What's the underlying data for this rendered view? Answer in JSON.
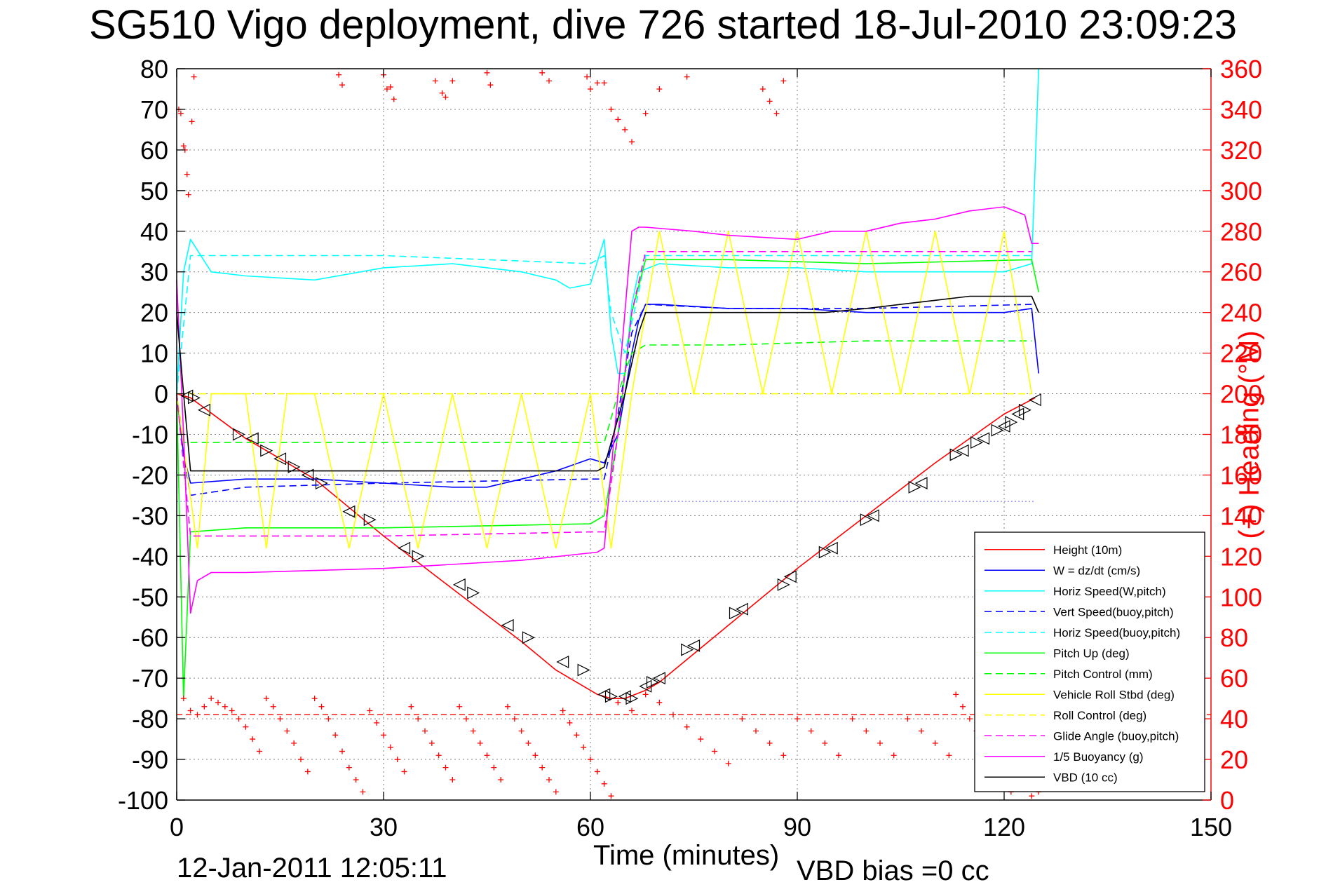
{
  "chart_data": {
    "type": "line",
    "title": "SG510 Vigo deployment, dive 726 started 18-Jul-2010 23:09:23",
    "xlabel": "Time (minutes)",
    "ylabel": "",
    "y2label": "(+) Heading (°M)",
    "xlim": [
      0,
      150
    ],
    "ylim": [
      -100,
      80
    ],
    "y2lim": [
      0,
      360
    ],
    "xticks": [
      "0",
      "30",
      "60",
      "90",
      "120",
      "150"
    ],
    "yticks": [
      "80",
      "70",
      "60",
      "50",
      "40",
      "30",
      "20",
      "10",
      "0",
      "-10",
      "-20",
      "-30",
      "-40",
      "-50",
      "-60",
      "-70",
      "-80",
      "-90",
      "-100"
    ],
    "y2ticks": [
      "360",
      "340",
      "320",
      "300",
      "280",
      "260",
      "240",
      "220",
      "200",
      "180",
      "160",
      "140",
      "120",
      "100",
      "80",
      "60",
      "40",
      "20",
      "0"
    ],
    "grid": true,
    "legend_position": "bottom-right",
    "footer_timestamp": "12-Jan-2011 12:05:11",
    "footer_note": "VBD bias =0 cc",
    "series": [
      {
        "name": "Height (10m)",
        "color": "#ff0000",
        "dash": "solid",
        "x": [
          0,
          2,
          10,
          20,
          30,
          40,
          50,
          55,
          61,
          63,
          65,
          68,
          70,
          80,
          90,
          100,
          110,
          120,
          124.5
        ],
        "y": [
          0,
          -1,
          -11,
          -21,
          -35,
          -48,
          -61,
          -68,
          -74,
          -75,
          -75,
          -73,
          -71,
          -57,
          -43,
          -30,
          -17,
          -5,
          -1
        ]
      },
      {
        "name": "W = dz/dt (cm/s)",
        "color": "#0000ff",
        "dash": "solid",
        "x": [
          0,
          1,
          2,
          10,
          20,
          30,
          40,
          45,
          50,
          55,
          60,
          62,
          64,
          65,
          66,
          67,
          68,
          70,
          80,
          90,
          100,
          110,
          120,
          124,
          125
        ],
        "y": [
          0,
          -15,
          -22,
          -21,
          -21,
          -22,
          -23,
          -23,
          -21,
          -19,
          -16,
          -17,
          -10,
          0,
          10,
          18,
          22,
          22,
          21,
          21,
          20,
          20,
          20,
          21,
          5
        ]
      },
      {
        "name": "Horiz Speed(W,pitch)",
        "color": "#00ffff",
        "dash": "solid",
        "x": [
          0,
          1,
          2,
          5,
          10,
          20,
          30,
          40,
          50,
          55,
          57,
          60,
          62,
          63,
          64,
          65,
          66,
          67,
          70,
          80,
          90,
          100,
          110,
          120,
          124,
          125
        ],
        "y": [
          0,
          30,
          38,
          30,
          29,
          28,
          31,
          32,
          30,
          28,
          26,
          27,
          38,
          15,
          5,
          5,
          22,
          30,
          32,
          31,
          31,
          30,
          30,
          30,
          32,
          80
        ]
      },
      {
        "name": "Vert Speed(buoy,pitch)",
        "color": "#0000ff",
        "dash": "dashed",
        "x": [
          0,
          1,
          2,
          10,
          30,
          60,
          62,
          64,
          66,
          68,
          80,
          100,
          124
        ],
        "y": [
          0,
          -15,
          -25,
          -23,
          -22,
          -21,
          -21,
          -5,
          15,
          22,
          21,
          21,
          22
        ]
      },
      {
        "name": "Horiz Speed(buoy,pitch)",
        "color": "#00ffff",
        "dash": "dashed",
        "x": [
          0,
          2,
          10,
          30,
          60,
          62,
          63,
          65,
          67,
          68,
          80,
          100,
          124
        ],
        "y": [
          0,
          34,
          34,
          34,
          32,
          34,
          20,
          10,
          25,
          34,
          34,
          34,
          34
        ]
      },
      {
        "name": "Pitch Up (deg)",
        "color": "#00ff00",
        "dash": "solid",
        "x": [
          0,
          1,
          2,
          10,
          30,
          60,
          62,
          64,
          66,
          68,
          80,
          100,
          124,
          125
        ],
        "y": [
          0,
          -75,
          -34,
          -33,
          -33,
          -32,
          -30,
          -10,
          20,
          33,
          33,
          32,
          33,
          25
        ]
      },
      {
        "name": "Pitch Control (mm)",
        "color": "#00ff00",
        "dash": "dashed",
        "x": [
          0,
          1,
          60,
          62,
          64,
          66,
          68,
          80,
          100,
          124
        ],
        "y": [
          0,
          -12,
          -12,
          -12,
          0,
          10,
          12,
          12,
          13,
          13
        ]
      },
      {
        "name": "Vehicle Roll Stbd (deg)",
        "color": "#ffff00",
        "dash": "solid",
        "x": [
          0,
          3,
          5,
          10,
          13,
          16,
          20,
          25,
          30,
          35,
          40,
          45,
          50,
          55,
          60,
          63,
          66,
          70,
          75,
          80,
          85,
          90,
          95,
          100,
          105,
          110,
          115,
          120,
          124
        ],
        "y": [
          0,
          -38,
          0,
          0,
          -38,
          0,
          0,
          -38,
          0,
          -38,
          0,
          -38,
          0,
          -38,
          0,
          -38,
          0,
          40,
          0,
          40,
          0,
          40,
          0,
          40,
          0,
          40,
          0,
          40,
          0
        ]
      },
      {
        "name": "Roll Control (deg)",
        "color": "#ffff00",
        "dash": "dashed",
        "x": [
          0,
          60,
          66,
          120,
          124
        ],
        "y": [
          0,
          0,
          0,
          0,
          0
        ]
      },
      {
        "name": "Glide Angle (buoy,pitch)",
        "color": "#ff00ff",
        "dash": "dashed",
        "x": [
          0,
          2,
          10,
          30,
          60,
          62,
          64,
          66,
          68,
          80,
          100,
          124
        ],
        "y": [
          0,
          -35,
          -35,
          -35,
          -34,
          -34,
          -10,
          20,
          35,
          35,
          35,
          35
        ]
      },
      {
        "name": "1/5 Buoyancy (g)",
        "color": "#ff00ff",
        "dash": "solid",
        "x": [
          0,
          1,
          2,
          3,
          5,
          10,
          30,
          50,
          61,
          62,
          64,
          66,
          67,
          68,
          75,
          80,
          90,
          95,
          100,
          105,
          110,
          115,
          120,
          123,
          124,
          125
        ],
        "y": [
          28,
          -10,
          -54,
          -46,
          -44,
          -44,
          -43,
          -41,
          -39,
          -38,
          0,
          40,
          41,
          41,
          40,
          39,
          38,
          40,
          40,
          42,
          43,
          45,
          46,
          44,
          37,
          37
        ]
      },
      {
        "name": "VBD (10 cc)",
        "color": "#000000",
        "dash": "solid",
        "x": [
          0,
          1,
          2,
          60,
          61,
          62,
          65,
          67,
          68,
          70,
          80,
          94,
          100,
          105,
          110,
          115,
          120,
          124,
          125
        ],
        "y": [
          20,
          0,
          -19,
          -19,
          -19,
          -18,
          0,
          15,
          20,
          20,
          20,
          20,
          21,
          22,
          23,
          24,
          24,
          24,
          20
        ]
      }
    ],
    "reference_lines": [
      {
        "color": "#ff0000",
        "dash": "dashed",
        "y": -79
      },
      {
        "color": "#8080ff",
        "dash": "dotted",
        "y": -26.5
      }
    ],
    "heading_points": [
      [
        0.3,
        340
      ],
      [
        0.6,
        338
      ],
      [
        1,
        322
      ],
      [
        1.2,
        320
      ],
      [
        1.5,
        308
      ],
      [
        1.7,
        298
      ],
      [
        2.2,
        334
      ],
      [
        2.5,
        356
      ],
      [
        23.5,
        357
      ],
      [
        24,
        352
      ],
      [
        30,
        357
      ],
      [
        30.5,
        350
      ],
      [
        31,
        351
      ],
      [
        31.5,
        345
      ],
      [
        37.5,
        354
      ],
      [
        38.5,
        348
      ],
      [
        39,
        346
      ],
      [
        40,
        354
      ],
      [
        45,
        358
      ],
      [
        45.5,
        352
      ],
      [
        53,
        358
      ],
      [
        54,
        354
      ],
      [
        59.5,
        356
      ],
      [
        60,
        350
      ],
      [
        61,
        353
      ],
      [
        62,
        353
      ],
      [
        63,
        340
      ],
      [
        64,
        335
      ],
      [
        65,
        330
      ],
      [
        66,
        324
      ],
      [
        68,
        338
      ],
      [
        70,
        350
      ],
      [
        74,
        356
      ],
      [
        85,
        350
      ],
      [
        86,
        344
      ],
      [
        87,
        338
      ],
      [
        88,
        354
      ],
      [
        1,
        50
      ],
      [
        2,
        44
      ],
      [
        3,
        42
      ],
      [
        4,
        46
      ],
      [
        5,
        50
      ],
      [
        6,
        48
      ],
      [
        7,
        46
      ],
      [
        8,
        44
      ],
      [
        9,
        40
      ],
      [
        10,
        36
      ],
      [
        11,
        30
      ],
      [
        12,
        24
      ],
      [
        13,
        50
      ],
      [
        14,
        46
      ],
      [
        15,
        40
      ],
      [
        16,
        34
      ],
      [
        17,
        28
      ],
      [
        18,
        20
      ],
      [
        19,
        14
      ],
      [
        20,
        50
      ],
      [
        21,
        46
      ],
      [
        22,
        40
      ],
      [
        23,
        32
      ],
      [
        24,
        24
      ],
      [
        25,
        16
      ],
      [
        26,
        10
      ],
      [
        27,
        4
      ],
      [
        28,
        44
      ],
      [
        29,
        38
      ],
      [
        30,
        32
      ],
      [
        31,
        26
      ],
      [
        32,
        20
      ],
      [
        33,
        14
      ],
      [
        34,
        46
      ],
      [
        35,
        40
      ],
      [
        36,
        34
      ],
      [
        37,
        28
      ],
      [
        38,
        22
      ],
      [
        39,
        16
      ],
      [
        40,
        10
      ],
      [
        41,
        46
      ],
      [
        42,
        40
      ],
      [
        43,
        34
      ],
      [
        44,
        28
      ],
      [
        45,
        22
      ],
      [
        46,
        16
      ],
      [
        47,
        10
      ],
      [
        48,
        46
      ],
      [
        49,
        40
      ],
      [
        50,
        34
      ],
      [
        51,
        28
      ],
      [
        52,
        22
      ],
      [
        53,
        16
      ],
      [
        54,
        10
      ],
      [
        55,
        4
      ],
      [
        56,
        44
      ],
      [
        57,
        38
      ],
      [
        58,
        32
      ],
      [
        59,
        26
      ],
      [
        60,
        20
      ],
      [
        61,
        14
      ],
      [
        62,
        8
      ],
      [
        63,
        2
      ],
      [
        64,
        48
      ],
      [
        66,
        44
      ],
      [
        68,
        52
      ],
      [
        70,
        48
      ],
      [
        72,
        42
      ],
      [
        74,
        36
      ],
      [
        76,
        30
      ],
      [
        78,
        24
      ],
      [
        80,
        18
      ],
      [
        82,
        40
      ],
      [
        84,
        34
      ],
      [
        86,
        28
      ],
      [
        88,
        22
      ],
      [
        90,
        40
      ],
      [
        92,
        34
      ],
      [
        94,
        28
      ],
      [
        96,
        22
      ],
      [
        98,
        40
      ],
      [
        100,
        34
      ],
      [
        102,
        28
      ],
      [
        104,
        22
      ],
      [
        106,
        40
      ],
      [
        108,
        34
      ],
      [
        110,
        28
      ],
      [
        112,
        22
      ],
      [
        113,
        52
      ],
      [
        114,
        46
      ],
      [
        115,
        40
      ],
      [
        116,
        34
      ],
      [
        117,
        28
      ],
      [
        118,
        22
      ],
      [
        119,
        16
      ],
      [
        120,
        10
      ],
      [
        121,
        4
      ],
      [
        122,
        50
      ],
      [
        123,
        44
      ],
      [
        124,
        2
      ],
      [
        125,
        4
      ]
    ],
    "gc_markers": [
      [
        1.5,
        -0.5
      ],
      [
        2.5,
        -1
      ],
      [
        4,
        -4
      ],
      [
        9,
        -10
      ],
      [
        11,
        -11
      ],
      [
        13,
        -14
      ],
      [
        15,
        -16
      ],
      [
        17,
        -18
      ],
      [
        19,
        -20
      ],
      [
        21,
        -22
      ],
      [
        25,
        -29
      ],
      [
        28,
        -31
      ],
      [
        33,
        -38
      ],
      [
        35,
        -40
      ],
      [
        41,
        -47
      ],
      [
        43,
        -49
      ],
      [
        48,
        -57
      ],
      [
        51,
        -60
      ],
      [
        56,
        -66
      ],
      [
        59,
        -68
      ],
      [
        62,
        -74
      ],
      [
        63,
        -74.5
      ],
      [
        65,
        -74.5
      ],
      [
        66,
        -75
      ],
      [
        68,
        -72
      ],
      [
        69,
        -71
      ],
      [
        70,
        -70
      ],
      [
        74,
        -63
      ],
      [
        75,
        -62
      ],
      [
        81,
        -54
      ],
      [
        82,
        -53
      ],
      [
        88,
        -47
      ],
      [
        89,
        -45
      ],
      [
        94,
        -39
      ],
      [
        95,
        -38
      ],
      [
        100,
        -31
      ],
      [
        101,
        -30
      ],
      [
        107,
        -23
      ],
      [
        108,
        -22
      ],
      [
        113,
        -15
      ],
      [
        114,
        -14
      ],
      [
        116,
        -12
      ],
      [
        117,
        -11
      ],
      [
        119,
        -9
      ],
      [
        120,
        -8
      ],
      [
        121,
        -7
      ],
      [
        122,
        -5
      ],
      [
        123,
        -4
      ],
      [
        124.5,
        -1.5
      ]
    ]
  }
}
